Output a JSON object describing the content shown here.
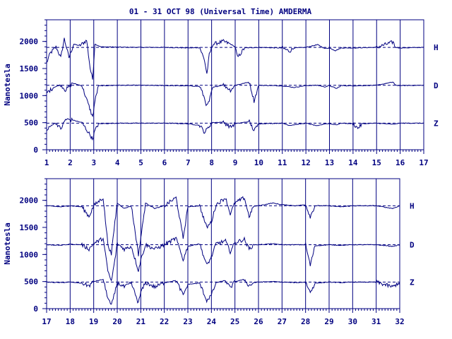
{
  "title": "01 - 31 OCT 98 (Universal Time) AMDERMA",
  "chart_data": [
    {
      "type": "line",
      "title": "01 - 31 OCT 98 (Universal Time) AMDERMA",
      "xlabel": "",
      "ylabel": "Nanotesla",
      "xlim": [
        1,
        17
      ],
      "ylim": [
        0,
        2400
      ],
      "x_ticks": [
        "1",
        "2",
        "3",
        "4",
        "5",
        "6",
        "7",
        "8",
        "9",
        "10",
        "11",
        "12",
        "13",
        "14",
        "15",
        "16",
        "17"
      ],
      "y_ticks": [
        "0",
        "500",
        "1000",
        "1500",
        "2000"
      ],
      "grid": "vertical lines at each day",
      "series": [
        {
          "name": "H",
          "baseline": 1890,
          "points": [
            [
              1,
              1600
            ],
            [
              1.15,
              1780
            ],
            [
              1.4,
              1900
            ],
            [
              1.6,
              1700
            ],
            [
              1.75,
              2050
            ],
            [
              1.95,
              1700
            ],
            [
              2.15,
              1950
            ],
            [
              2.4,
              1920
            ],
            [
              2.7,
              2020
            ],
            [
              2.85,
              1500
            ],
            [
              2.95,
              1300
            ],
            [
              3.05,
              1950
            ],
            [
              3.3,
              1900
            ],
            [
              4,
              1895
            ],
            [
              5,
              1890
            ],
            [
              6,
              1890
            ],
            [
              7,
              1880
            ],
            [
              7.5,
              1885
            ],
            [
              7.7,
              1650
            ],
            [
              7.8,
              1400
            ],
            [
              7.9,
              1750
            ],
            [
              8.05,
              1950
            ],
            [
              8.5,
              2000
            ],
            [
              8.8,
              1950
            ],
            [
              9,
              1900
            ],
            [
              9.1,
              1700
            ],
            [
              9.4,
              1880
            ],
            [
              10,
              1890
            ],
            [
              10.8,
              1880
            ],
            [
              11,
              1880
            ],
            [
              11.3,
              1820
            ],
            [
              11.5,
              1880
            ],
            [
              12,
              1890
            ],
            [
              12.5,
              1940
            ],
            [
              12.8,
              1870
            ],
            [
              13,
              1880
            ],
            [
              13.25,
              1830
            ],
            [
              13.5,
              1880
            ],
            [
              14,
              1880
            ],
            [
              15,
              1890
            ],
            [
              15.7,
              1990
            ],
            [
              15.8,
              1890
            ],
            [
              16,
              1880
            ],
            [
              17,
              1890
            ]
          ]
        },
        {
          "name": "D",
          "baseline": 1190,
          "points": [
            [
              1,
              1050
            ],
            [
              1.3,
              1150
            ],
            [
              1.6,
              1200
            ],
            [
              1.8,
              1100
            ],
            [
              2.1,
              1230
            ],
            [
              2.5,
              1180
            ],
            [
              2.8,
              800
            ],
            [
              2.95,
              600
            ],
            [
              3.05,
              900
            ],
            [
              3.2,
              1180
            ],
            [
              4,
              1190
            ],
            [
              5,
              1190
            ],
            [
              6,
              1185
            ],
            [
              7,
              1180
            ],
            [
              7.5,
              1170
            ],
            [
              7.7,
              950
            ],
            [
              7.8,
              800
            ],
            [
              7.9,
              900
            ],
            [
              8.05,
              1150
            ],
            [
              8.5,
              1200
            ],
            [
              8.8,
              1100
            ],
            [
              9,
              1190
            ],
            [
              9.3,
              1220
            ],
            [
              9.6,
              1250
            ],
            [
              9.8,
              900
            ],
            [
              10,
              1190
            ],
            [
              11,
              1180
            ],
            [
              11.5,
              1150
            ],
            [
              12,
              1185
            ],
            [
              12.5,
              1190
            ],
            [
              12.8,
              1160
            ],
            [
              13,
              1185
            ],
            [
              13.3,
              1130
            ],
            [
              13.5,
              1185
            ],
            [
              14,
              1180
            ],
            [
              15,
              1190
            ],
            [
              15.7,
              1250
            ],
            [
              15.8,
              1190
            ],
            [
              16,
              1185
            ],
            [
              17,
              1190
            ]
          ]
        },
        {
          "name": "Z",
          "baseline": 490,
          "points": [
            [
              1,
              350
            ],
            [
              1.2,
              450
            ],
            [
              1.4,
              500
            ],
            [
              1.6,
              380
            ],
            [
              1.8,
              560
            ],
            [
              2.1,
              550
            ],
            [
              2.5,
              500
            ],
            [
              2.8,
              300
            ],
            [
              2.95,
              200
            ],
            [
              3.05,
              350
            ],
            [
              3.2,
              480
            ],
            [
              4,
              490
            ],
            [
              5,
              490
            ],
            [
              6,
              490
            ],
            [
              7,
              480
            ],
            [
              7.5,
              450
            ],
            [
              7.7,
              320
            ],
            [
              7.85,
              400
            ],
            [
              8,
              500
            ],
            [
              8.5,
              510
            ],
            [
              8.8,
              420
            ],
            [
              9,
              480
            ],
            [
              9.3,
              500
            ],
            [
              9.6,
              520
            ],
            [
              9.8,
              350
            ],
            [
              10,
              480
            ],
            [
              11,
              490
            ],
            [
              11.3,
              450
            ],
            [
              12,
              490
            ],
            [
              12.5,
              440
            ],
            [
              12.8,
              480
            ],
            [
              13,
              480
            ],
            [
              13.3,
              460
            ],
            [
              13.5,
              490
            ],
            [
              14,
              480
            ],
            [
              14.2,
              400
            ],
            [
              14.4,
              480
            ],
            [
              15,
              490
            ],
            [
              15.7,
              470
            ],
            [
              16,
              490
            ],
            [
              17,
              490
            ]
          ]
        }
      ],
      "legend": "right"
    },
    {
      "type": "line",
      "xlabel": "",
      "ylabel": "Nanotesla",
      "xlim": [
        17,
        32
      ],
      "ylim": [
        0,
        2400
      ],
      "x_ticks": [
        "17",
        "18",
        "19",
        "20",
        "21",
        "22",
        "23",
        "24",
        "25",
        "26",
        "27",
        "28",
        "29",
        "30",
        "31",
        "32"
      ],
      "y_ticks": [
        "0",
        "500",
        "1000",
        "1500",
        "2000"
      ],
      "grid": "vertical lines at each day",
      "series": [
        {
          "name": "H",
          "baseline": 1900,
          "points": [
            [
              17,
              1900
            ],
            [
              17.6,
              1880
            ],
            [
              18,
              1900
            ],
            [
              18.5,
              1880
            ],
            [
              18.8,
              1700
            ],
            [
              19,
              1900
            ],
            [
              19.4,
              2050
            ],
            [
              19.6,
              1200
            ],
            [
              19.75,
              1000
            ],
            [
              19.9,
              1600
            ],
            [
              20,
              1950
            ],
            [
              20.3,
              1850
            ],
            [
              20.6,
              1900
            ],
            [
              20.9,
              1000
            ],
            [
              21,
              1300
            ],
            [
              21.2,
              1950
            ],
            [
              21.6,
              1850
            ],
            [
              22,
              1900
            ],
            [
              22.5,
              2050
            ],
            [
              22.8,
              1300
            ],
            [
              23,
              1880
            ],
            [
              23.5,
              1900
            ],
            [
              23.8,
              1500
            ],
            [
              24,
              1600
            ],
            [
              24.2,
              1920
            ],
            [
              24.6,
              2050
            ],
            [
              24.8,
              1750
            ],
            [
              25,
              1950
            ],
            [
              25.4,
              2050
            ],
            [
              25.6,
              1700
            ],
            [
              25.8,
              1890
            ],
            [
              26,
              1900
            ],
            [
              26.6,
              1950
            ],
            [
              27,
              1920
            ],
            [
              27.6,
              1900
            ],
            [
              28,
              1920
            ],
            [
              28.2,
              1700
            ],
            [
              28.4,
              1900
            ],
            [
              29,
              1900
            ],
            [
              29.5,
              1880
            ],
            [
              30,
              1900
            ],
            [
              31,
              1900
            ],
            [
              31.7,
              1850
            ],
            [
              32,
              1900
            ]
          ]
        },
        {
          "name": "D",
          "baseline": 1180,
          "points": [
            [
              17,
              1180
            ],
            [
              17.6,
              1170
            ],
            [
              18,
              1190
            ],
            [
              18.5,
              1180
            ],
            [
              18.8,
              1100
            ],
            [
              19,
              1200
            ],
            [
              19.4,
              1300
            ],
            [
              19.6,
              700
            ],
            [
              19.75,
              500
            ],
            [
              19.9,
              900
            ],
            [
              20,
              1200
            ],
            [
              20.3,
              1100
            ],
            [
              20.6,
              1150
            ],
            [
              20.9,
              700
            ],
            [
              21,
              900
            ],
            [
              21.2,
              1180
            ],
            [
              21.6,
              1100
            ],
            [
              22,
              1180
            ],
            [
              22.5,
              1300
            ],
            [
              22.8,
              900
            ],
            [
              23,
              1150
            ],
            [
              23.5,
              1200
            ],
            [
              23.8,
              800
            ],
            [
              24,
              950
            ],
            [
              24.2,
              1200
            ],
            [
              24.6,
              1250
            ],
            [
              24.8,
              1050
            ],
            [
              25,
              1220
            ],
            [
              25.4,
              1280
            ],
            [
              25.6,
              1100
            ],
            [
              25.8,
              1180
            ],
            [
              26,
              1180
            ],
            [
              26.6,
              1200
            ],
            [
              27,
              1180
            ],
            [
              27.6,
              1180
            ],
            [
              28,
              1180
            ],
            [
              28.2,
              800
            ],
            [
              28.4,
              1160
            ],
            [
              29,
              1180
            ],
            [
              29.5,
              1170
            ],
            [
              30,
              1180
            ],
            [
              31,
              1180
            ],
            [
              31.7,
              1150
            ],
            [
              32,
              1180
            ]
          ]
        },
        {
          "name": "Z",
          "baseline": 490,
          "points": [
            [
              17,
              490
            ],
            [
              17.6,
              480
            ],
            [
              18,
              490
            ],
            [
              18.5,
              470
            ],
            [
              18.8,
              420
            ],
            [
              19,
              500
            ],
            [
              19.4,
              540
            ],
            [
              19.6,
              200
            ],
            [
              19.75,
              50
            ],
            [
              19.9,
              300
            ],
            [
              20,
              480
            ],
            [
              20.3,
              400
            ],
            [
              20.6,
              470
            ],
            [
              20.9,
              100
            ],
            [
              21,
              300
            ],
            [
              21.2,
              480
            ],
            [
              21.6,
              400
            ],
            [
              22,
              480
            ],
            [
              22.5,
              520
            ],
            [
              22.8,
              250
            ],
            [
              23,
              450
            ],
            [
              23.5,
              470
            ],
            [
              23.8,
              150
            ],
            [
              24,
              250
            ],
            [
              24.2,
              480
            ],
            [
              24.6,
              520
            ],
            [
              24.8,
              380
            ],
            [
              25,
              500
            ],
            [
              25.4,
              540
            ],
            [
              25.6,
              420
            ],
            [
              25.8,
              480
            ],
            [
              26,
              490
            ],
            [
              26.6,
              500
            ],
            [
              27,
              490
            ],
            [
              27.6,
              480
            ],
            [
              28,
              490
            ],
            [
              28.2,
              300
            ],
            [
              28.4,
              470
            ],
            [
              29,
              490
            ],
            [
              29.5,
              480
            ],
            [
              30,
              490
            ],
            [
              31,
              490
            ],
            [
              31.7,
              400
            ],
            [
              32,
              490
            ]
          ]
        }
      ],
      "legend": "right"
    }
  ]
}
